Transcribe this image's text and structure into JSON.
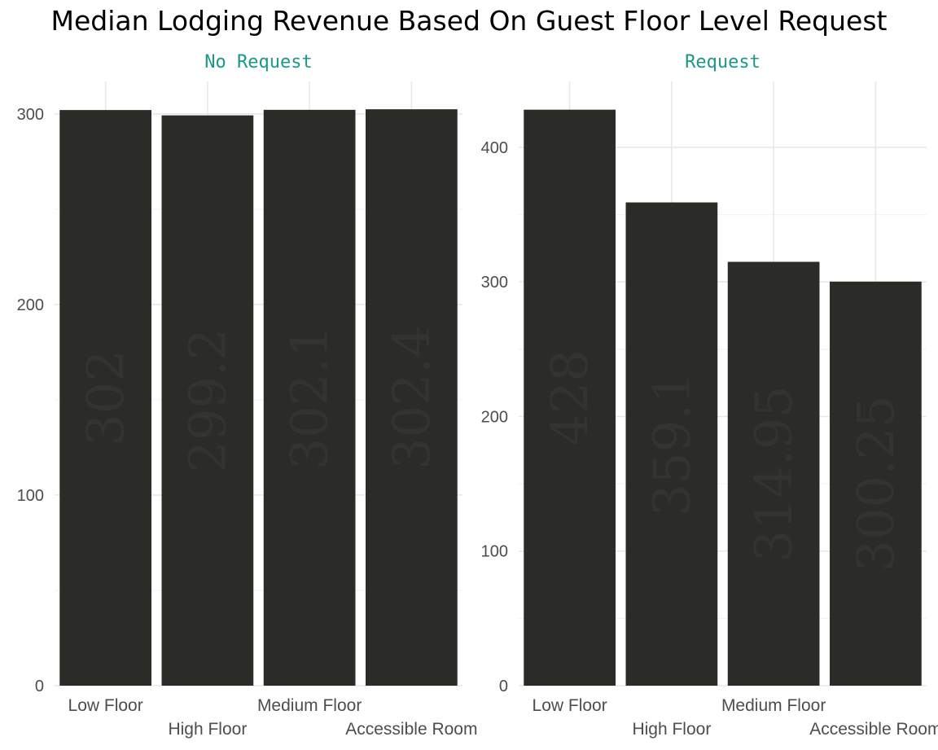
{
  "title": "Median Lodging Revenue Based On Guest Floor Level Request",
  "colors": {
    "bar": "#2b2b27",
    "strip_text": "#1a9988",
    "grid_major": "#e8e8e8",
    "grid_minor": "#f3f3f3",
    "tick_text": "#4d4d4d",
    "data_label": "#333330"
  },
  "chart_data": [
    {
      "type": "bar",
      "panel": "No Request",
      "categories": [
        "Low Floor",
        "High Floor",
        "Medium Floor",
        "Accessible Room"
      ],
      "values": [
        302,
        299.2,
        302.1,
        302.4
      ],
      "labels": [
        "302",
        "299.2",
        "302.1",
        "302.4"
      ],
      "yticks": [
        0,
        100,
        200,
        300
      ],
      "ylim": [
        0,
        317
      ],
      "grid": true
    },
    {
      "type": "bar",
      "panel": "Request",
      "categories": [
        "Low Floor",
        "High Floor",
        "Medium Floor",
        "Accessible Room"
      ],
      "values": [
        428,
        359.1,
        314.95,
        300.25
      ],
      "labels": [
        "428",
        "359.1",
        "314.95",
        "300.25"
      ],
      "yticks": [
        0,
        100,
        200,
        300,
        400
      ],
      "ylim": [
        0,
        449
      ],
      "grid": true
    }
  ]
}
